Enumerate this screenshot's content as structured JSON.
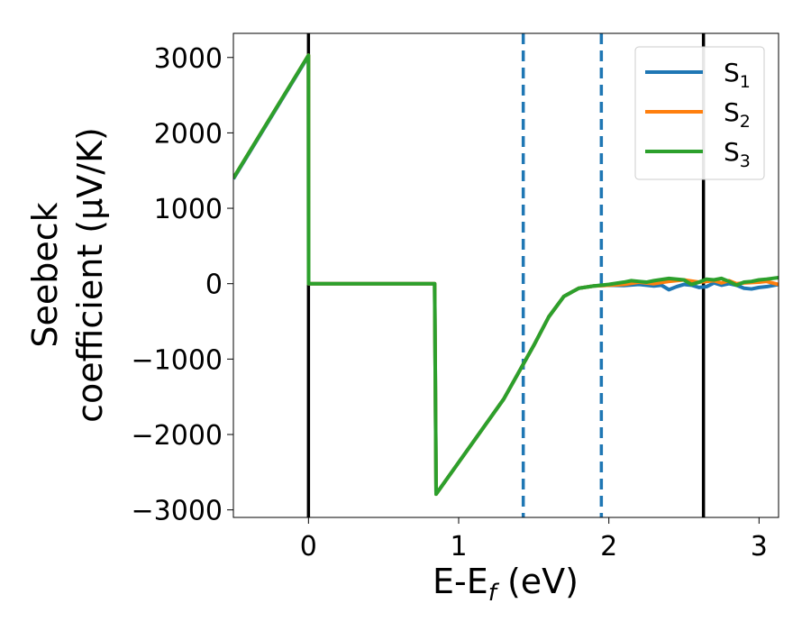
{
  "chart_data": {
    "type": "line",
    "title": "",
    "xlabel": {
      "main": "E-E",
      "sub": "f",
      "suffix": " (eV)"
    },
    "ylabel": {
      "line1": "Seebeck",
      "line2": "coefficient  (μV/K)"
    },
    "xlim": [
      -0.5,
      3.13
    ],
    "ylim": [
      -3100,
      3320
    ],
    "xticks": [
      0,
      1,
      2,
      3
    ],
    "xtick_labels": [
      "0",
      "1",
      "2",
      "3"
    ],
    "yticks": [
      -3000,
      -2000,
      -1000,
      0,
      1000,
      2000,
      3000
    ],
    "ytick_labels": [
      "−3000",
      "−2000",
      "−1000",
      "0",
      "1000",
      "2000",
      "3000"
    ],
    "grid": false,
    "legend_position": "top-right",
    "vlines": [
      {
        "x": 0.0,
        "style": "solid",
        "color": "#000000"
      },
      {
        "x": 2.63,
        "style": "solid",
        "color": "#000000"
      },
      {
        "x": 1.43,
        "style": "dashed",
        "color": "#1f77b4"
      },
      {
        "x": 1.95,
        "style": "dashed",
        "color": "#1f77b4"
      }
    ],
    "series": [
      {
        "name": "S",
        "sub": "1",
        "color": "#1f77b4",
        "points": [
          [
            -0.5,
            1390
          ],
          [
            0,
            3020
          ],
          [
            0.001,
            0
          ],
          [
            0.84,
            0
          ],
          [
            0.85,
            -2790
          ],
          [
            1.3,
            -1530
          ],
          [
            1.5,
            -820
          ],
          [
            1.6,
            -440
          ],
          [
            1.7,
            -170
          ],
          [
            1.8,
            -60
          ],
          [
            1.9,
            -30
          ],
          [
            2.0,
            -20
          ],
          [
            2.1,
            -25
          ],
          [
            2.2,
            -10
          ],
          [
            2.3,
            -30
          ],
          [
            2.35,
            -20
          ],
          [
            2.4,
            -80
          ],
          [
            2.45,
            -40
          ],
          [
            2.5,
            -10
          ],
          [
            2.55,
            -20
          ],
          [
            2.6,
            -50
          ],
          [
            2.65,
            -40
          ],
          [
            2.7,
            10
          ],
          [
            2.75,
            -20
          ],
          [
            2.8,
            0
          ],
          [
            2.85,
            -20
          ],
          [
            2.9,
            -60
          ],
          [
            2.95,
            -70
          ],
          [
            3.0,
            -50
          ],
          [
            3.05,
            -40
          ],
          [
            3.13,
            -10
          ]
        ]
      },
      {
        "name": "S",
        "sub": "2",
        "color": "#ff7f0e",
        "points": [
          [
            -0.5,
            1400
          ],
          [
            0,
            3030
          ],
          [
            0.001,
            0
          ],
          [
            0.84,
            0
          ],
          [
            0.85,
            -2790
          ],
          [
            1.3,
            -1530
          ],
          [
            1.5,
            -820
          ],
          [
            1.6,
            -440
          ],
          [
            1.7,
            -170
          ],
          [
            1.8,
            -60
          ],
          [
            1.9,
            -30
          ],
          [
            2.0,
            -20
          ],
          [
            2.1,
            -10
          ],
          [
            2.2,
            20
          ],
          [
            2.3,
            0
          ],
          [
            2.4,
            30
          ],
          [
            2.5,
            50
          ],
          [
            2.6,
            20
          ],
          [
            2.7,
            40
          ],
          [
            2.75,
            10
          ],
          [
            2.8,
            40
          ],
          [
            2.85,
            0
          ],
          [
            2.9,
            10
          ],
          [
            3.0,
            20
          ],
          [
            3.05,
            30
          ],
          [
            3.13,
            -10
          ]
        ]
      },
      {
        "name": "S",
        "sub": "3",
        "color": "#2ca02c",
        "points": [
          [
            -0.5,
            1400
          ],
          [
            0,
            3030
          ],
          [
            0.001,
            0
          ],
          [
            0.84,
            0
          ],
          [
            0.85,
            -2790
          ],
          [
            1.3,
            -1530
          ],
          [
            1.5,
            -820
          ],
          [
            1.6,
            -440
          ],
          [
            1.7,
            -170
          ],
          [
            1.8,
            -60
          ],
          [
            1.9,
            -30
          ],
          [
            2.0,
            -10
          ],
          [
            2.1,
            20
          ],
          [
            2.15,
            40
          ],
          [
            2.2,
            30
          ],
          [
            2.25,
            20
          ],
          [
            2.3,
            40
          ],
          [
            2.4,
            70
          ],
          [
            2.5,
            50
          ],
          [
            2.55,
            -10
          ],
          [
            2.6,
            20
          ],
          [
            2.65,
            60
          ],
          [
            2.7,
            50
          ],
          [
            2.75,
            70
          ],
          [
            2.8,
            30
          ],
          [
            2.85,
            -20
          ],
          [
            2.9,
            20
          ],
          [
            2.95,
            30
          ],
          [
            3.0,
            50
          ],
          [
            3.05,
            60
          ],
          [
            3.13,
            80
          ]
        ]
      }
    ]
  }
}
